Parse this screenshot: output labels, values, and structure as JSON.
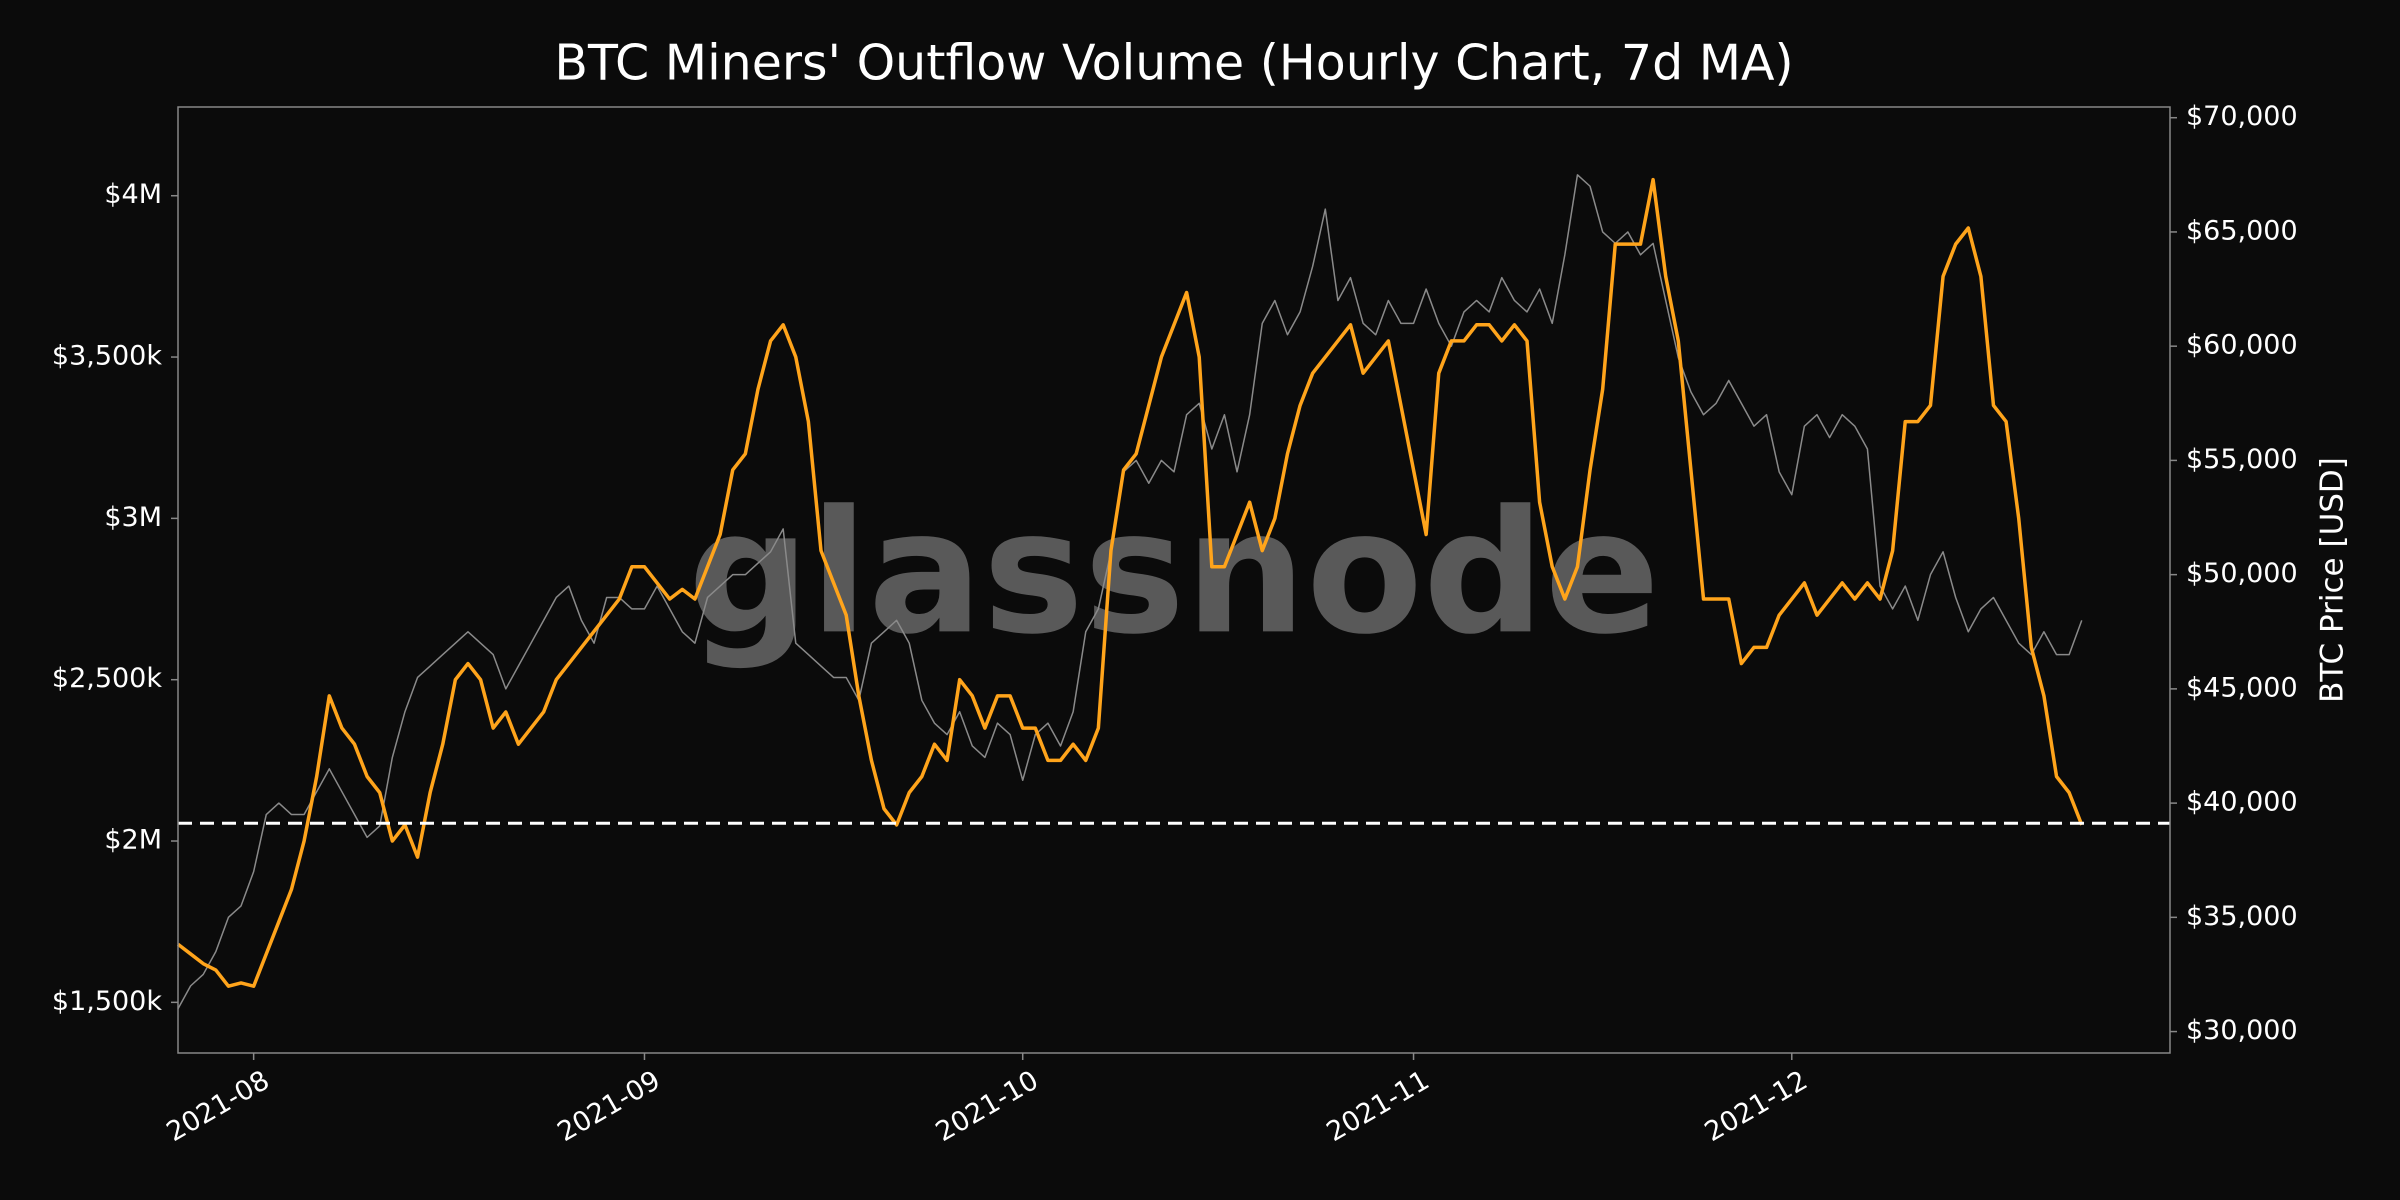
{
  "chart_data": {
    "type": "line",
    "title": "BTC Miners' Outflow Volume (Hourly Chart, 7d MA)",
    "watermark": "glassnode",
    "y2label": "BTC Price [USD]",
    "categories": [
      null,
      null,
      null,
      null,
      null,
      null,
      "2021-08",
      null,
      null,
      null,
      null,
      null,
      null,
      null,
      null,
      null,
      null,
      null,
      null,
      null,
      null,
      null,
      null,
      null,
      null,
      null,
      null,
      null,
      null,
      null,
      null,
      null,
      null,
      null,
      null,
      null,
      null,
      "2021-09",
      null,
      null,
      null,
      null,
      null,
      null,
      null,
      null,
      null,
      null,
      null,
      null,
      null,
      null,
      null,
      null,
      null,
      null,
      null,
      null,
      null,
      null,
      null,
      null,
      null,
      null,
      null,
      null,
      null,
      "2021-10",
      null,
      null,
      null,
      null,
      null,
      null,
      null,
      null,
      null,
      null,
      null,
      null,
      null,
      null,
      null,
      null,
      null,
      null,
      null,
      null,
      null,
      null,
      null,
      null,
      null,
      null,
      null,
      null,
      null,
      null,
      "2021-11",
      null,
      null,
      null,
      null,
      null,
      null,
      null,
      null,
      null,
      null,
      null,
      null,
      null,
      null,
      null,
      null,
      null,
      null,
      null,
      null,
      null,
      null,
      null,
      null,
      null,
      null,
      null,
      null,
      null,
      "2021-12",
      null,
      null,
      null,
      null,
      null,
      null,
      null,
      null,
      null,
      null,
      null,
      null,
      null,
      null,
      null,
      null,
      null,
      null,
      null,
      null,
      null,
      null,
      null,
      null,
      null,
      null,
      null,
      null,
      null,
      null
    ],
    "series": [
      {
        "color": "#ffa41b",
        "values": [
          1680000,
          1650000,
          1620000,
          1600000,
          1550000,
          1560000,
          1550000,
          1650000,
          1750000,
          1850000,
          2000000,
          2200000,
          2450000,
          2350000,
          2300000,
          2200000,
          2150000,
          2000000,
          2050000,
          1950000,
          2150000,
          2300000,
          2500000,
          2550000,
          2500000,
          2350000,
          2400000,
          2300000,
          2350000,
          2400000,
          2500000,
          2550000,
          2600000,
          2650000,
          2700000,
          2750000,
          2850000,
          2850000,
          2800000,
          2750000,
          2780000,
          2750000,
          2850000,
          2950000,
          3150000,
          3200000,
          3400000,
          3550000,
          3600000,
          3500000,
          3300000,
          2900000,
          2800000,
          2700000,
          2450000,
          2250000,
          2100000,
          2050000,
          2150000,
          2200000,
          2300000,
          2250000,
          2500000,
          2450000,
          2350000,
          2450000,
          2450000,
          2350000,
          2350000,
          2250000,
          2250000,
          2300000,
          2250000,
          2350000,
          2900000,
          3150000,
          3200000,
          3350000,
          3500000,
          3600000,
          3700000,
          3500000,
          2850000,
          2850000,
          2950000,
          3050000,
          2900000,
          3000000,
          3200000,
          3350000,
          3450000,
          3500000,
          3550000,
          3600000,
          3450000,
          3500000,
          3550000,
          3350000,
          3150000,
          2950000,
          3450000,
          3550000,
          3550000,
          3600000,
          3600000,
          3550000,
          3600000,
          3550000,
          3050000,
          2850000,
          2750000,
          2850000,
          3150000,
          3400000,
          3850000,
          3850000,
          3850000,
          4050000,
          3750000,
          3550000,
          3150000,
          2750000,
          2750000,
          2750000,
          2550000,
          2600000,
          2600000,
          2700000,
          2750000,
          2800000,
          2700000,
          2750000,
          2800000,
          2750000,
          2800000,
          2750000,
          2900000,
          3300000,
          3300000,
          3350000,
          3750000,
          3850000,
          3900000,
          3750000,
          3350000,
          3300000,
          3000000,
          2600000,
          2450000,
          2200000,
          2150000,
          2050000,
          null,
          null,
          null,
          null,
          null,
          null,
          null
        ]
      },
      {
        "color": "#8a8a8a",
        "axis": "y2",
        "values": [
          31000,
          32000,
          32500,
          33500,
          35000,
          35500,
          37000,
          39500,
          40000,
          39500,
          39500,
          40500,
          41500,
          40500,
          39500,
          38500,
          39000,
          42000,
          44000,
          45500,
          46000,
          46500,
          47000,
          47500,
          47000,
          46500,
          45000,
          46000,
          47000,
          48000,
          49000,
          49500,
          48000,
          47000,
          49000,
          49000,
          48500,
          48500,
          49500,
          48500,
          47500,
          47000,
          49000,
          49500,
          50000,
          50000,
          50500,
          51000,
          52000,
          47000,
          46500,
          46000,
          45500,
          45500,
          44500,
          47000,
          47500,
          48000,
          47000,
          44500,
          43500,
          43000,
          44000,
          42500,
          42000,
          43500,
          43000,
          41000,
          43000,
          43500,
          42500,
          44000,
          47500,
          48500,
          51000,
          54500,
          55000,
          54000,
          55000,
          54500,
          57000,
          57500,
          55500,
          57000,
          54500,
          57000,
          61000,
          62000,
          60500,
          61500,
          63500,
          66000,
          62000,
          63000,
          61000,
          60500,
          62000,
          61000,
          61000,
          62500,
          61000,
          60000,
          61500,
          62000,
          61500,
          63000,
          62000,
          61500,
          62500,
          61000,
          64000,
          67500,
          67000,
          65000,
          64500,
          65000,
          64000,
          64500,
          62000,
          59500,
          58000,
          57000,
          57500,
          58500,
          57500,
          56500,
          57000,
          54500,
          53500,
          56500,
          57000,
          56000,
          57000,
          56500,
          55500,
          49500,
          48500,
          49500,
          48000,
          50000,
          51000,
          49000,
          47500,
          48500,
          49000,
          48000,
          47000,
          46500,
          47500,
          46500,
          46500,
          48000,
          null,
          null,
          null,
          null,
          null,
          null,
          null
        ]
      }
    ],
    "ylim": [
      1343000,
      4275000
    ],
    "yticks": [
      {
        "value": 1500000,
        "label": "$1,500k"
      },
      {
        "value": 2000000,
        "label": "$2M"
      },
      {
        "value": 2500000,
        "label": "$2,500k"
      },
      {
        "value": 3000000,
        "label": "$3M"
      },
      {
        "value": 3500000,
        "label": "$3,500k"
      },
      {
        "value": 4000000,
        "label": "$4M"
      }
    ],
    "y2lim": [
      29062,
      70469
    ],
    "y2ticks": [
      {
        "value": 30000,
        "label": "$30,000"
      },
      {
        "value": 35000,
        "label": "$35,000"
      },
      {
        "value": 40000,
        "label": "$40,000"
      },
      {
        "value": 45000,
        "label": "$45,000"
      },
      {
        "value": 50000,
        "label": "$50,000"
      },
      {
        "value": 55000,
        "label": "$55,000"
      },
      {
        "value": 60000,
        "label": "$60,000"
      },
      {
        "value": 65000,
        "label": "$65,000"
      },
      {
        "value": 70000,
        "label": "$70,000"
      }
    ],
    "reference_line": {
      "value": 2055000,
      "color": "#ffffff",
      "dashed": true
    },
    "grid": false
  }
}
